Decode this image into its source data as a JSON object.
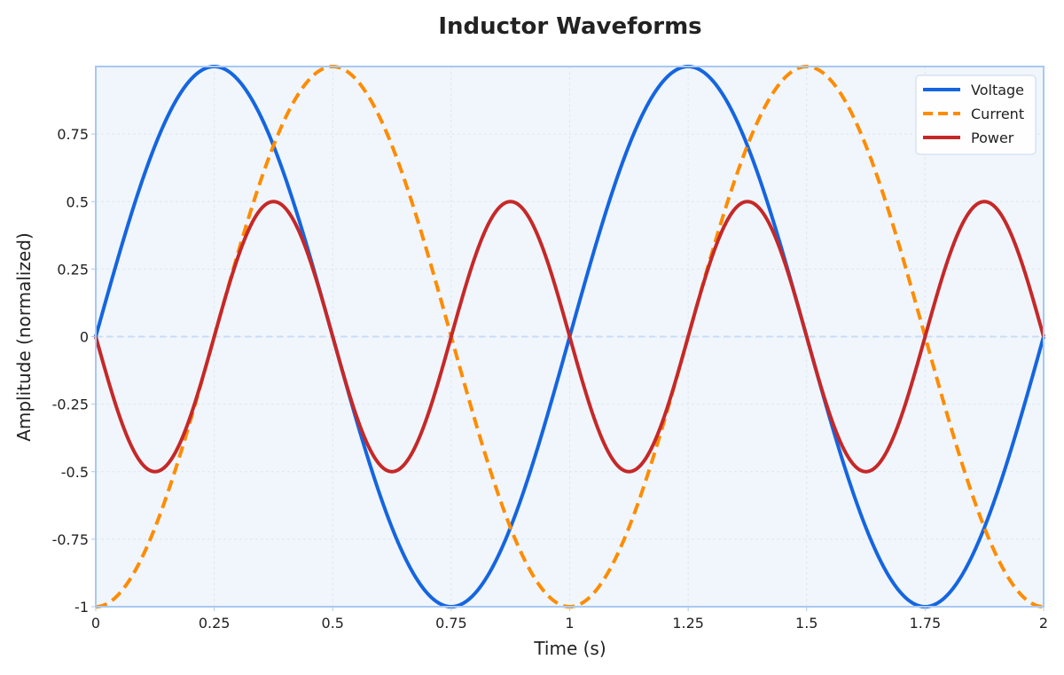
{
  "chart_data": {
    "type": "line",
    "title": "Inductor Waveforms",
    "xlabel": "Time (s)",
    "ylabel": "Amplitude (normalized)",
    "xlim": [
      0,
      2
    ],
    "ylim": [
      -1,
      1
    ],
    "x_ticks": [
      0,
      0.25,
      0.5,
      0.75,
      1,
      1.25,
      1.5,
      1.75,
      2
    ],
    "x_tick_labels": [
      "0",
      "0.25",
      "0.5",
      "0.75",
      "1",
      "1.25",
      "1.5",
      "1.75",
      "2"
    ],
    "y_ticks": [
      -1,
      -0.75,
      -0.5,
      -0.25,
      0,
      0.25,
      0.5,
      0.75
    ],
    "y_tick_labels": [
      "-1",
      "-0.75",
      "-0.5",
      "-0.25",
      "0",
      "0.25",
      "0.5",
      "0.75"
    ],
    "grid": true,
    "legend_position": "top-right",
    "x": [
      0,
      0.0625,
      0.125,
      0.1875,
      0.25,
      0.3125,
      0.375,
      0.4375,
      0.5,
      0.5625,
      0.625,
      0.6875,
      0.75,
      0.8125,
      0.875,
      0.9375,
      1,
      1.0625,
      1.125,
      1.1875,
      1.25,
      1.3125,
      1.375,
      1.4375,
      1.5,
      1.5625,
      1.625,
      1.6875,
      1.75,
      1.8125,
      1.875,
      1.9375,
      2
    ],
    "series": [
      {
        "name": "Voltage",
        "color": "#1565e0",
        "dash": "solid",
        "values": [
          0,
          0.383,
          0.707,
          0.924,
          1,
          0.924,
          0.707,
          0.383,
          0,
          -0.383,
          -0.707,
          -0.924,
          -1,
          -0.924,
          -0.707,
          -0.383,
          0,
          0.383,
          0.707,
          0.924,
          1,
          0.924,
          0.707,
          0.383,
          0,
          -0.383,
          -0.707,
          -0.924,
          -1,
          -0.924,
          -0.707,
          -0.383,
          0
        ]
      },
      {
        "name": "Current",
        "color": "#ff8c00",
        "dash": "dashed",
        "values": [
          -1,
          -0.924,
          -0.707,
          -0.383,
          0,
          0.383,
          0.707,
          0.924,
          1,
          0.924,
          0.707,
          0.383,
          0,
          -0.383,
          -0.707,
          -0.924,
          -1,
          -0.924,
          -0.707,
          -0.383,
          0,
          0.383,
          0.707,
          0.924,
          1,
          0.924,
          0.707,
          0.383,
          0,
          -0.383,
          -0.707,
          -0.924,
          -1
        ]
      },
      {
        "name": "Power",
        "color": "#c62828",
        "dash": "solid",
        "values": [
          0,
          -0.354,
          -0.5,
          -0.354,
          0,
          0.354,
          0.5,
          0.354,
          0,
          -0.354,
          -0.5,
          -0.354,
          0,
          0.354,
          0.5,
          0.354,
          0,
          -0.354,
          -0.5,
          -0.354,
          0,
          0.354,
          0.5,
          0.354,
          0,
          -0.354,
          -0.5,
          -0.354,
          0,
          0.354,
          0.5,
          0.354,
          0
        ]
      }
    ],
    "colors": {
      "plot_background": "#f0f6fc",
      "plot_border": "#a8c8f0",
      "zero_line": "#c8dcf4",
      "grid": "#dde6ef"
    }
  }
}
